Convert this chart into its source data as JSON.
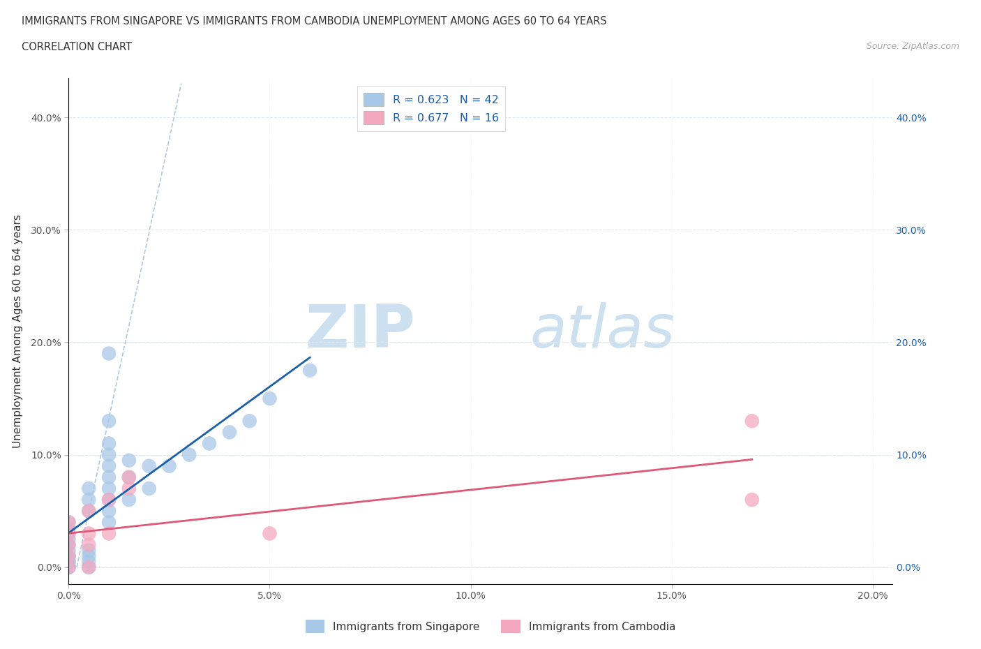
{
  "title_line1": "IMMIGRANTS FROM SINGAPORE VS IMMIGRANTS FROM CAMBODIA UNEMPLOYMENT AMONG AGES 60 TO 64 YEARS",
  "title_line2": "CORRELATION CHART",
  "source_text": "Source: ZipAtlas.com",
  "ylabel": "Unemployment Among Ages 60 to 64 years",
  "xlim": [
    0.0,
    0.205
  ],
  "ylim": [
    -0.015,
    0.435
  ],
  "xticks": [
    0.0,
    0.05,
    0.1,
    0.15,
    0.2
  ],
  "yticks": [
    0.0,
    0.1,
    0.2,
    0.3,
    0.4
  ],
  "xtick_labels": [
    "0.0%",
    "5.0%",
    "10.0%",
    "15.0%",
    "20.0%"
  ],
  "ytick_labels_left": [
    "0.0%",
    "10.0%",
    "20.0%",
    "30.0%",
    "40.0%"
  ],
  "ytick_labels_right": [
    "0.0%",
    "10.0%",
    "20.0%",
    "30.0%",
    "40.0%"
  ],
  "singapore_color": "#a8c8e8",
  "cambodia_color": "#f4a8c0",
  "singapore_line_color": "#1a5faa",
  "cambodia_line_color": "#e05878",
  "diagonal_color": "#b0c8e0",
  "R_singapore": 0.623,
  "N_singapore": 42,
  "R_cambodia": 0.677,
  "N_cambodia": 16,
  "legend_R_color": "#1a5faa",
  "watermark_zip": "ZIP",
  "watermark_atlas": "atlas",
  "watermark_color": "#cce0f0",
  "tick_color_left": "#555555",
  "tick_color_right": "#1a5faa",
  "singapore_x": [
    0.0,
    0.0,
    0.0,
    0.0,
    0.0,
    0.0,
    0.0,
    0.0,
    0.0,
    0.0,
    0.0,
    0.0,
    0.0,
    0.005,
    0.005,
    0.005,
    0.005,
    0.005,
    0.005,
    0.005,
    0.01,
    0.01,
    0.01,
    0.01,
    0.01,
    0.01,
    0.01,
    0.01,
    0.01,
    0.01,
    0.015,
    0.015,
    0.015,
    0.02,
    0.02,
    0.025,
    0.03,
    0.035,
    0.04,
    0.045,
    0.05,
    0.06
  ],
  "singapore_y": [
    0.0,
    0.0,
    0.0,
    0.005,
    0.005,
    0.01,
    0.01,
    0.015,
    0.02,
    0.025,
    0.03,
    0.035,
    0.04,
    0.0,
    0.005,
    0.01,
    0.015,
    0.05,
    0.06,
    0.07,
    0.04,
    0.05,
    0.06,
    0.07,
    0.08,
    0.09,
    0.1,
    0.11,
    0.13,
    0.19,
    0.06,
    0.08,
    0.095,
    0.07,
    0.09,
    0.09,
    0.1,
    0.11,
    0.12,
    0.13,
    0.15,
    0.175
  ],
  "cambodia_x": [
    0.0,
    0.0,
    0.0,
    0.0,
    0.0,
    0.005,
    0.005,
    0.005,
    0.005,
    0.01,
    0.01,
    0.015,
    0.015,
    0.05,
    0.17,
    0.17
  ],
  "cambodia_y": [
    0.0,
    0.01,
    0.02,
    0.03,
    0.04,
    0.0,
    0.02,
    0.03,
    0.05,
    0.03,
    0.06,
    0.07,
    0.08,
    0.03,
    0.06,
    0.13
  ]
}
